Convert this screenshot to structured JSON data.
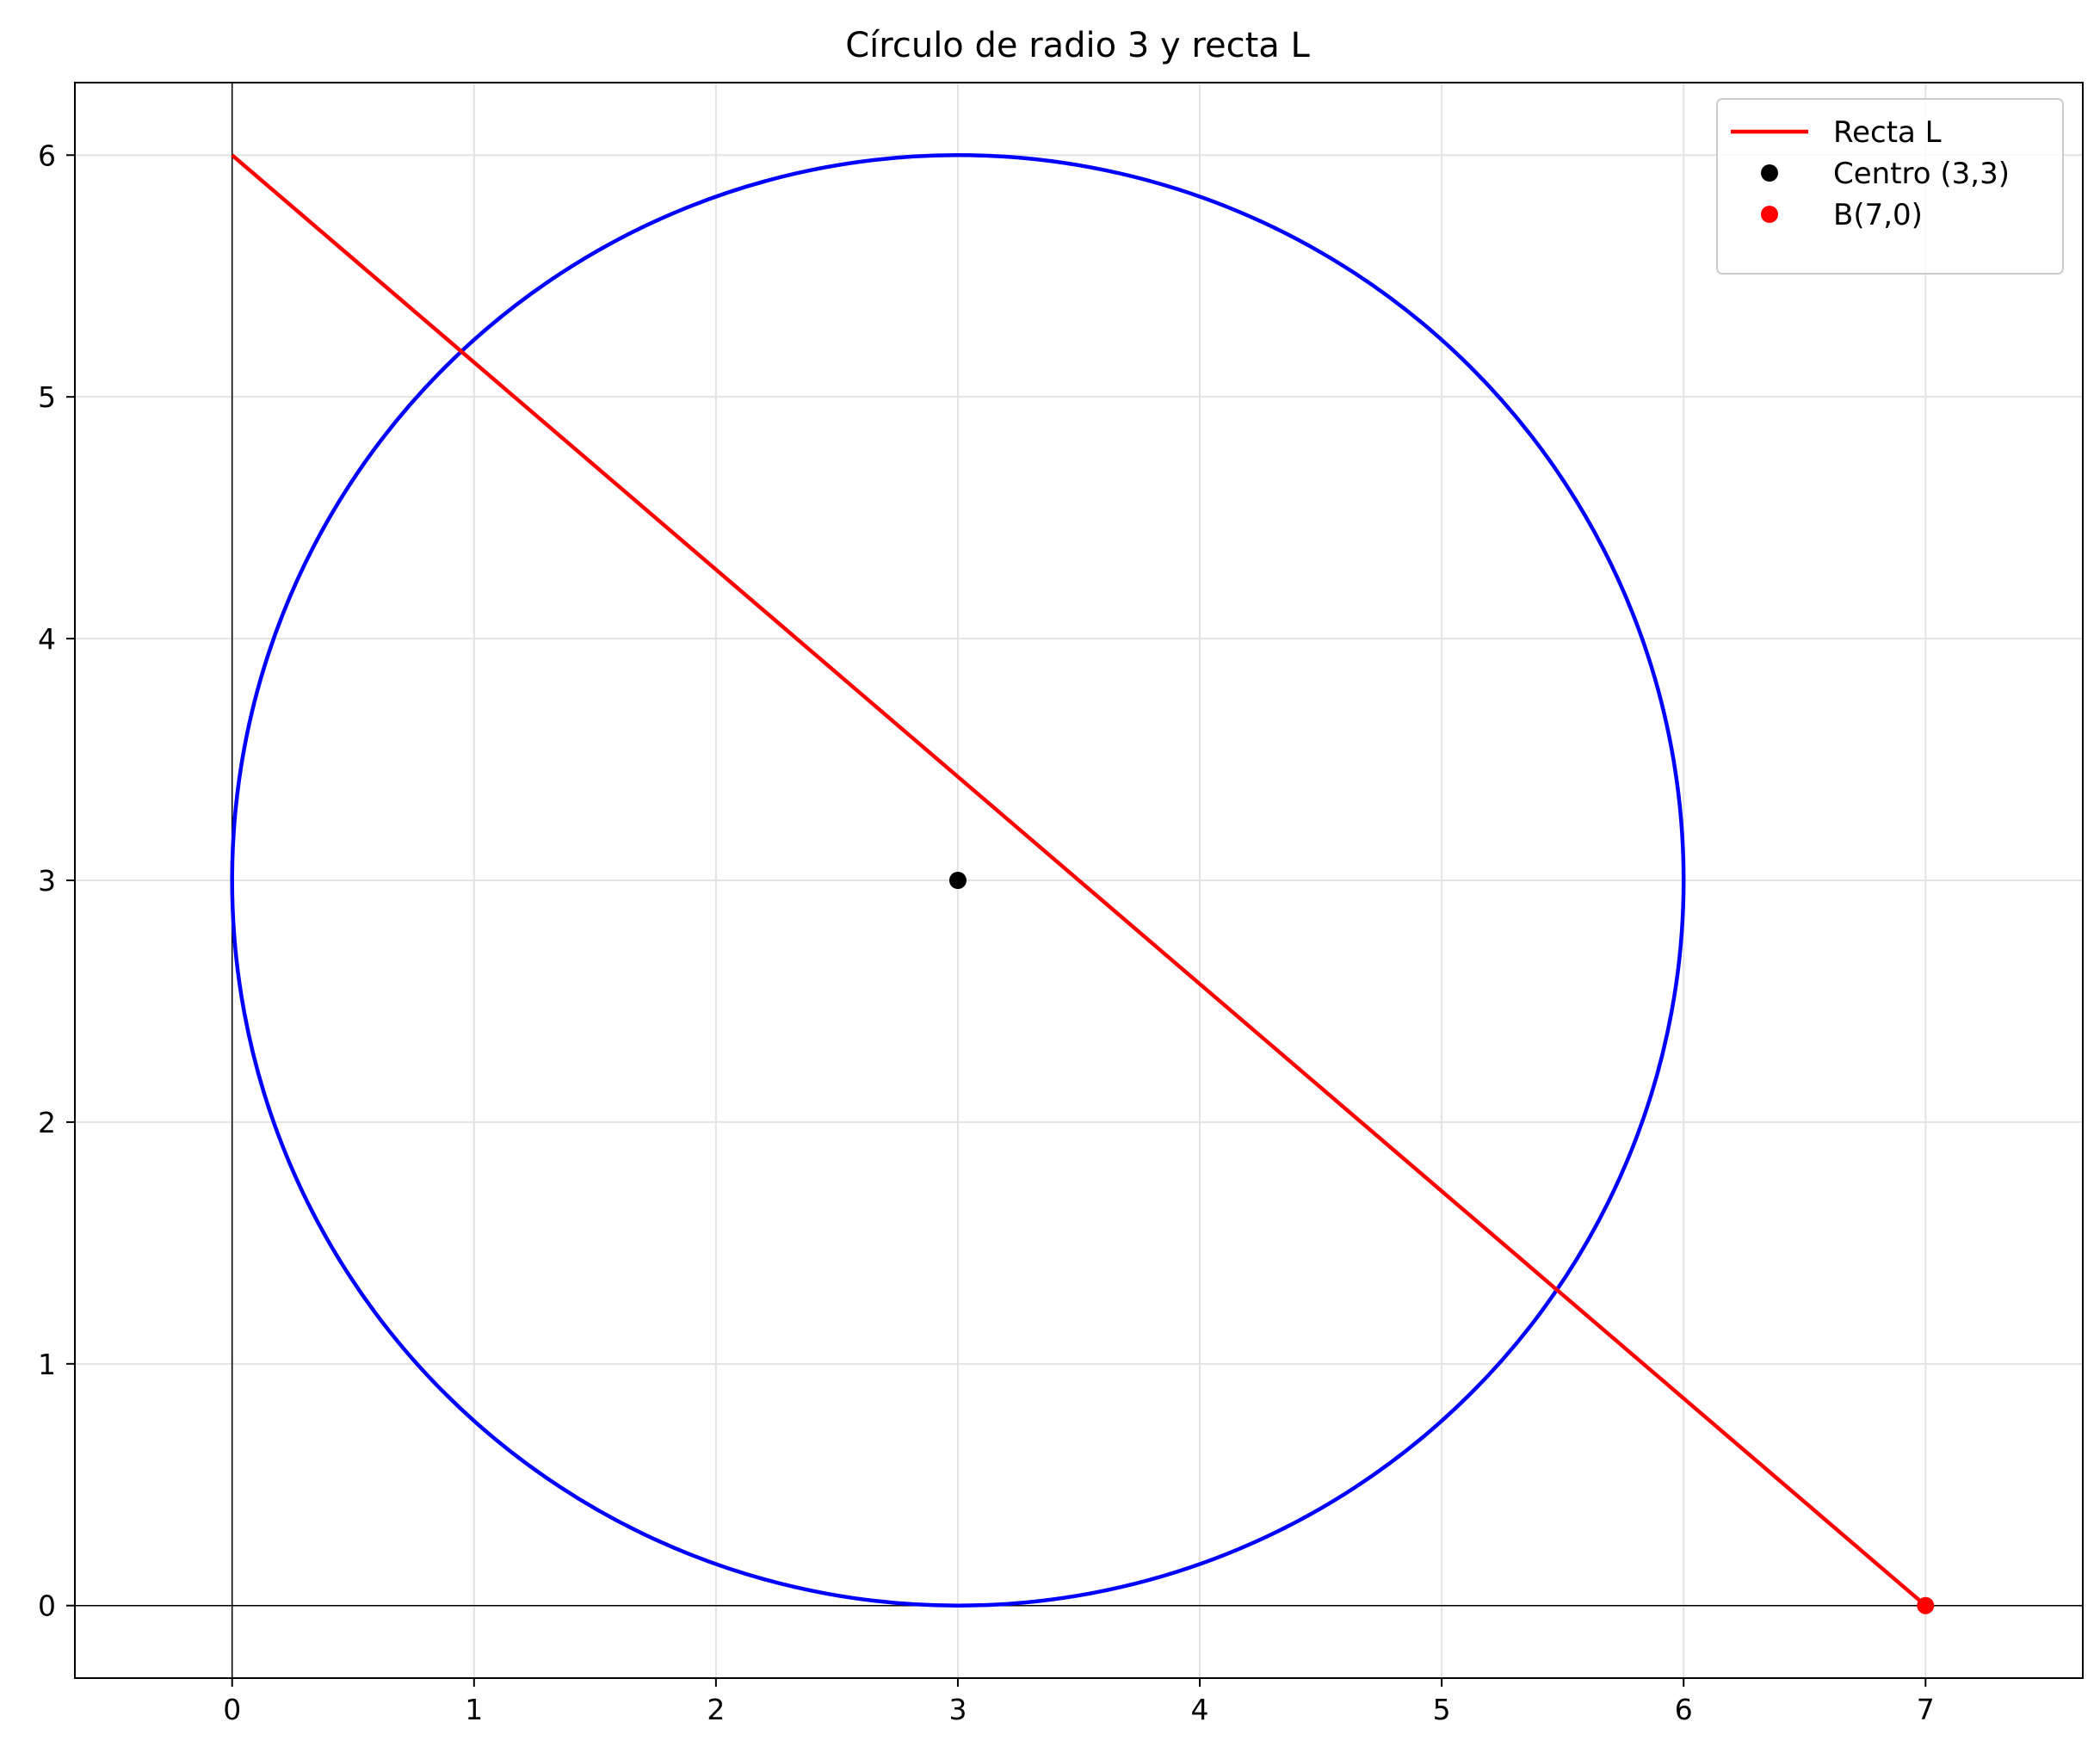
{
  "chart_data": {
    "type": "line",
    "title": "Círculo de radio 3 y recta L",
    "xlabel": "",
    "ylabel": "",
    "xlim": [
      -0.65,
      7.65
    ],
    "ylim": [
      -0.3,
      6.3
    ],
    "xticks": [
      0,
      1,
      2,
      3,
      4,
      5,
      6,
      7
    ],
    "yticks": [
      0,
      1,
      2,
      3,
      4,
      5,
      6
    ],
    "grid": true,
    "axis_lines": {
      "x": 0,
      "y": 0
    },
    "legend_position": "top-right",
    "circle": {
      "center": [
        3,
        3
      ],
      "radius": 3,
      "color": "#0000ff"
    },
    "series": [
      {
        "name": "Recta L",
        "kind": "line",
        "color": "#ff0000",
        "points": [
          [
            0,
            6
          ],
          [
            7,
            0
          ]
        ]
      },
      {
        "name": "Centro (3,3)",
        "kind": "point",
        "color": "#000000",
        "points": [
          [
            3,
            3
          ]
        ]
      },
      {
        "name": "B(7,0)",
        "kind": "point",
        "color": "#ff0000",
        "points": [
          [
            7,
            0
          ]
        ]
      }
    ]
  }
}
